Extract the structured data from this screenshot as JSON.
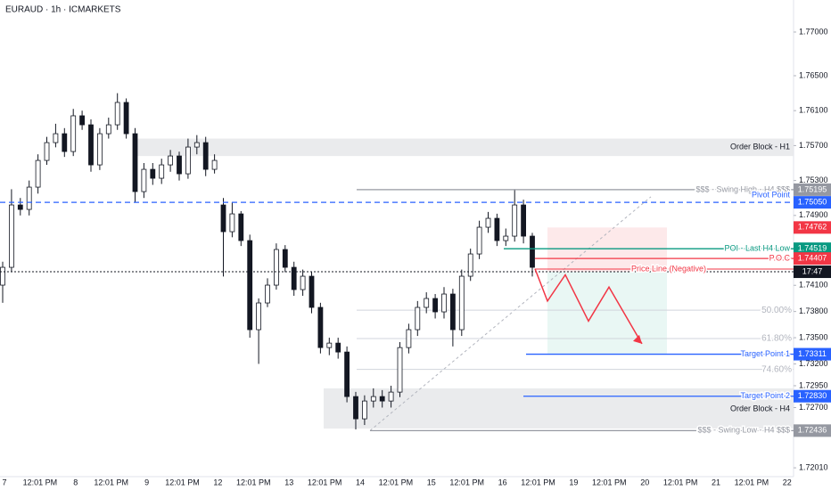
{
  "chart_data": {
    "type": "candlestick",
    "title": "EURAUD · 1h · ICMARKETS",
    "categories": [
      "7",
      "12:01 PM",
      "8",
      "12:01 PM",
      "9",
      "12:01 PM",
      "12",
      "12:01 PM",
      "13",
      "12:01 PM",
      "14",
      "12:01 PM",
      "15",
      "12:01 PM",
      "16",
      "12:01 PM",
      "19",
      "12:01 PM",
      "20",
      "12:01 PM",
      "21",
      "12:01 PM",
      "22"
    ],
    "open": [
      1.74102,
      1.74306,
      1.7502,
      1.74969,
      1.75224,
      1.7553,
      1.75734,
      1.75836,
      1.75632,
      1.76041,
      1.75938,
      1.75479,
      1.75836,
      1.75938,
      1.76194,
      1.75836,
      1.75173,
      1.75428,
      1.75326,
      1.75479,
      1.75581,
      1.75377,
      1.75683,
      1.75734,
      1.75428,
      1.7502,
      1.74714,
      1.74918,
      1.74612,
      1.73592,
      1.73898,
      1.74102,
      1.7451,
      1.74306,
      1.74051,
      1.74204,
      1.73847,
      1.73387,
      1.73438,
      1.73336,
      1.72826,
      1.72571,
      1.72775,
      1.72826,
      1.72775,
      1.72877,
      1.73387,
      1.73592,
      1.73847,
      1.73949,
      1.73796,
      1.74,
      1.73592,
      1.74204,
      1.74459,
      1.74765,
      1.74867,
      1.74612,
      1.74663,
      1.7502,
      1.74663
    ],
    "high": [
      1.7437,
      1.752,
      1.751,
      1.753,
      1.756,
      1.758,
      1.7595,
      1.759,
      1.7612,
      1.761,
      1.76,
      1.759,
      1.7602,
      1.763,
      1.7624,
      1.759,
      1.755,
      1.755,
      1.7555,
      1.7565,
      1.7563,
      1.7578,
      1.7582,
      1.758,
      1.756,
      1.751,
      1.7505,
      1.7495,
      1.7468,
      1.7395,
      1.7418,
      1.7458,
      1.7456,
      1.7437,
      1.7428,
      1.7425,
      1.739,
      1.735,
      1.735,
      1.734,
      1.7288,
      1.7284,
      1.7292,
      1.729,
      1.7295,
      1.7345,
      1.7366,
      1.7392,
      1.7402,
      1.74,
      1.7408,
      1.7406,
      1.7428,
      1.7452,
      1.7484,
      1.7494,
      1.7492,
      1.7475,
      1.752,
      1.7508,
      1.747
    ],
    "low": [
      1.739,
      1.7425,
      1.749,
      1.749,
      1.7515,
      1.7548,
      1.7568,
      1.7557,
      1.7558,
      1.7588,
      1.754,
      1.7542,
      1.7578,
      1.7588,
      1.7578,
      1.7505,
      1.751,
      1.7525,
      1.7526,
      1.754,
      1.753,
      1.7532,
      1.756,
      1.7535,
      1.7538,
      1.742,
      1.7465,
      1.7455,
      1.735,
      1.732,
      1.7385,
      1.7405,
      1.7425,
      1.7398,
      1.7398,
      1.7378,
      1.7332,
      1.733,
      1.7326,
      1.7276,
      1.7245,
      1.725,
      1.727,
      1.727,
      1.727,
      1.7282,
      1.7332,
      1.7352,
      1.7378,
      1.7372,
      1.7372,
      1.734,
      1.7352,
      1.7415,
      1.744,
      1.747,
      1.7455,
      1.7455,
      1.746,
      1.7458,
      1.742
    ],
    "close": [
      1.74306,
      1.7502,
      1.74969,
      1.75224,
      1.7553,
      1.75734,
      1.75836,
      1.75632,
      1.76041,
      1.75938,
      1.75479,
      1.75836,
      1.75938,
      1.76194,
      1.75836,
      1.75173,
      1.75428,
      1.75326,
      1.75479,
      1.75581,
      1.75377,
      1.75683,
      1.75734,
      1.75428,
      1.7553,
      1.74714,
      1.74918,
      1.74612,
      1.73592,
      1.73898,
      1.74102,
      1.7451,
      1.74306,
      1.74051,
      1.74204,
      1.73847,
      1.73387,
      1.73438,
      1.73336,
      1.72826,
      1.72571,
      1.72775,
      1.72826,
      1.72775,
      1.72877,
      1.73387,
      1.73592,
      1.73847,
      1.73949,
      1.73796,
      1.74,
      1.73592,
      1.74204,
      1.74459,
      1.74765,
      1.74867,
      1.74612,
      1.74663,
      1.7502,
      1.74663,
      1.74306
    ],
    "ylim": [
      1.71909,
      1.77367
    ],
    "yticks": [
      {
        "value": 1.77,
        "label": "1.77000"
      },
      {
        "value": 1.765,
        "label": "1.76500"
      },
      {
        "value": 1.761,
        "label": "1.76100"
      },
      {
        "value": 1.757,
        "label": "1.75700"
      },
      {
        "value": 1.753,
        "label": "1.75300"
      },
      {
        "value": 1.749,
        "label": "1.74900"
      },
      {
        "value": 1.741,
        "label": "1.74100"
      },
      {
        "value": 1.738,
        "label": "1.73800"
      },
      {
        "value": 1.735,
        "label": "1.73500"
      },
      {
        "value": 1.732,
        "label": "1.73200"
      },
      {
        "value": 1.7295,
        "label": "1.72950"
      },
      {
        "value": 1.727,
        "label": "1.72700"
      },
      {
        "value": 1.7201,
        "label": "1.72010"
      }
    ],
    "zones": [
      {
        "label": "Order Block - H1",
        "top": 1.7578,
        "bottom": 1.7558
      },
      {
        "label": "Order Block - H4",
        "top": 1.7292,
        "bottom": 1.7246
      }
    ],
    "levels": [
      {
        "label": "$$$ - Swing High - H4 $$$",
        "value": 1.75195,
        "value_label": "1.75195",
        "color": "#9598a1"
      },
      {
        "label": "Pivot Point",
        "value": 1.7505,
        "value_label": "1.75050",
        "color": "#2962ff",
        "dashed": true
      },
      {
        "label": "POI - Last H4 Low",
        "value": 1.74519,
        "value_label": "1.74519",
        "color": "#089981"
      },
      {
        "label": "P.O.C",
        "value": 1.74407,
        "value_label": "1.74407",
        "color": "#f23645"
      },
      {
        "label": "Target Point 1",
        "value": 1.73311,
        "value_label": "1.73311",
        "color": "#2962ff"
      },
      {
        "label": "Target Point 2",
        "value": 1.7283,
        "value_label": "1.72830",
        "color": "#2962ff"
      },
      {
        "label": "$$$ - Swing Low - H4 $$$",
        "value": 1.72436,
        "value_label": "1.72436",
        "color": "#9598a1"
      }
    ],
    "fib": [
      {
        "value": 50,
        "label": "50.00%"
      },
      {
        "value": 61.8,
        "label": "61.80%"
      },
      {
        "value": 74.6,
        "label": "74.60%"
      }
    ],
    "stop": {
      "value": 1.74762,
      "value_label": "1.74762"
    },
    "price_line": {
      "label": "Price Line (Negative)",
      "value": 1.74255,
      "time_label": "17:47"
    },
    "projection": [
      1.7429,
      1.7392,
      1.7422,
      1.7369,
      1.7408,
      1.7343
    ]
  }
}
